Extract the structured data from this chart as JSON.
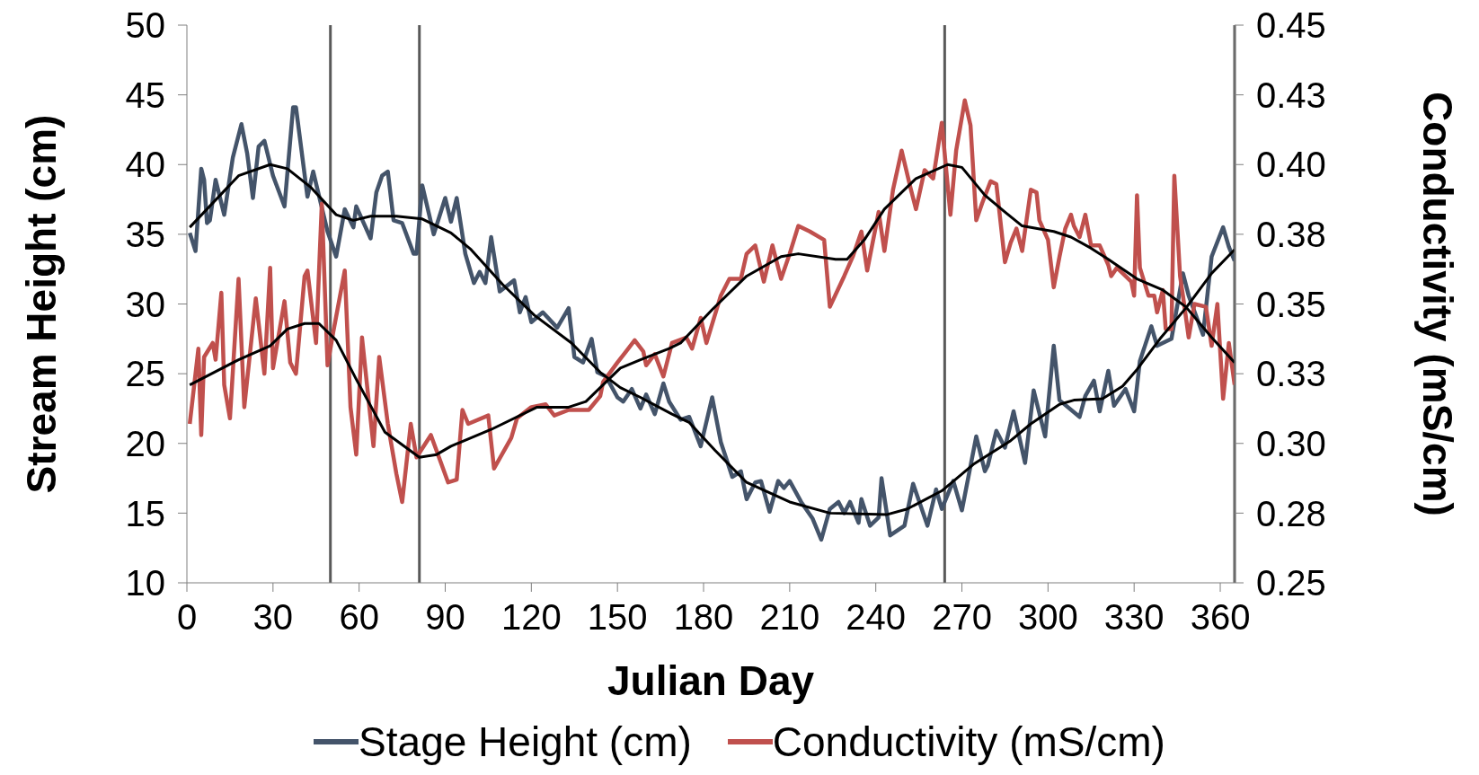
{
  "chart_data": {
    "type": "line",
    "xlabel": "Julian Day",
    "ylabel": "Stream Height (cm)",
    "y2label": "Conductivity (mS/cm)",
    "xlim": [
      0,
      365
    ],
    "xticks": [
      0,
      30,
      60,
      90,
      120,
      150,
      180,
      210,
      240,
      270,
      300,
      330,
      360
    ],
    "ylim": [
      10,
      50
    ],
    "yticks": [
      10,
      15,
      20,
      25,
      30,
      35,
      40,
      45,
      50
    ],
    "y2lim": [
      0.25,
      0.45
    ],
    "y2ticks": [
      0.25,
      {
        "value": 0.275,
        "label": "0.28"
      },
      {
        "value": 0.3,
        "label": "0.30"
      },
      {
        "value": 0.325,
        "label": "0.33"
      },
      0.35,
      {
        "value": 0.375,
        "label": "0.38"
      },
      {
        "value": 0.4,
        "label": "0.40"
      },
      {
        "value": 0.425,
        "label": "0.43"
      },
      0.45
    ],
    "grid": false,
    "legend": "bottom",
    "marker": "none",
    "line_style": "solid",
    "ref_lines": [
      {
        "axis": "x",
        "value": 50,
        "color": "#595959"
      },
      {
        "axis": "x",
        "value": 81,
        "color": "#595959"
      },
      {
        "axis": "x",
        "value": 264,
        "color": "#595959"
      },
      {
        "axis": "x",
        "value": 365,
        "color": "#595959"
      }
    ],
    "series": [
      {
        "name": "Stage Height (cm)",
        "color": "#44546a",
        "x": [
          1,
          3,
          5,
          6,
          7,
          8,
          10,
          13,
          16,
          19,
          21,
          23,
          25,
          27,
          30,
          34,
          37,
          38,
          42,
          44,
          49,
          52,
          55,
          58,
          59,
          64,
          66,
          68,
          70,
          72,
          75,
          79,
          80,
          82,
          86,
          90,
          92,
          94,
          97,
          100,
          102,
          104,
          106,
          109,
          114,
          116,
          118,
          120,
          124,
          129,
          133,
          135,
          138,
          141,
          143,
          146,
          150,
          152,
          155,
          158,
          160,
          163,
          166,
          168,
          172,
          175,
          179,
          183,
          186,
          190,
          193,
          195,
          198,
          200,
          203,
          206,
          208,
          210,
          214,
          218,
          221,
          224,
          227,
          229,
          231,
          234,
          235,
          238,
          241,
          242,
          245,
          250,
          253,
          258,
          261,
          263,
          267,
          270,
          275,
          278,
          279,
          282,
          285,
          288,
          292,
          295,
          299,
          302,
          304,
          311,
          313,
          316,
          318,
          321,
          323,
          327,
          330,
          332,
          336,
          338,
          343,
          347,
          349,
          354,
          357,
          361,
          363,
          365
        ],
        "values": [
          35.1,
          33.8,
          39.7,
          38.9,
          35.8,
          36.0,
          38.9,
          36.4,
          40.5,
          42.9,
          40.8,
          37.6,
          41.3,
          41.7,
          39.2,
          37.0,
          44.1,
          44.1,
          37.7,
          39.5,
          35.2,
          33.4,
          36.8,
          35.5,
          37.0,
          34.7,
          38.0,
          39.2,
          39.5,
          36.0,
          35.8,
          33.6,
          33.6,
          38.5,
          35.0,
          37.6,
          35.9,
          37.6,
          33.6,
          31.5,
          32.3,
          31.5,
          34.8,
          30.9,
          31.7,
          29.4,
          30.5,
          28.7,
          29.4,
          28.3,
          29.7,
          26.2,
          25.8,
          27.5,
          25.1,
          24.8,
          23.3,
          23.0,
          23.9,
          22.5,
          23.5,
          22.1,
          24.3,
          23.0,
          21.7,
          21.9,
          19.8,
          23.3,
          20.1,
          17.6,
          18.0,
          16.0,
          17.2,
          17.3,
          15.1,
          17.3,
          16.8,
          17.3,
          15.8,
          14.6,
          13.1,
          15.3,
          15.8,
          15.0,
          15.8,
          14.3,
          16.0,
          14.1,
          14.7,
          17.5,
          13.4,
          14.1,
          17.1,
          14.1,
          16.7,
          15.3,
          17.3,
          15.2,
          20.5,
          18.0,
          18.4,
          20.9,
          19.7,
          22.3,
          18.6,
          23.8,
          20.5,
          27.0,
          23.1,
          21.9,
          23.4,
          24.5,
          22.3,
          25.2,
          22.7,
          23.9,
          22.3,
          25.9,
          28.4,
          27.0,
          27.5,
          32.2,
          30.6,
          27.8,
          33.4,
          35.5,
          34.1,
          33.1
        ]
      },
      {
        "name": "Conductivity (mS/cm)",
        "color": "#c0504d",
        "axis": "y2",
        "x": [
          1,
          4,
          5,
          6,
          9,
          10,
          12,
          13,
          15,
          18,
          20,
          24,
          27,
          29,
          30,
          34,
          36,
          38,
          41,
          42,
          45,
          47,
          49,
          51,
          55,
          57,
          59,
          61,
          65,
          67,
          70,
          73,
          75,
          78,
          80,
          85,
          91,
          94,
          96,
          98,
          105,
          107,
          113,
          115,
          120,
          125,
          128,
          133,
          140,
          144,
          145,
          150,
          153,
          156,
          159,
          160,
          163,
          166,
          169,
          174,
          176,
          179,
          181,
          186,
          189,
          193,
          195,
          198,
          201,
          204,
          207,
          210,
          213,
          217,
          222,
          224,
          229,
          232,
          235,
          237,
          241,
          243,
          246,
          249,
          252,
          254,
          257,
          260,
          263,
          266,
          268,
          271,
          273,
          275,
          277,
          280,
          282,
          285,
          287,
          289,
          291,
          294,
          296,
          297,
          300,
          302,
          304,
          306,
          308,
          309,
          311,
          313,
          315,
          318,
          321,
          322,
          324,
          327,
          329,
          330,
          331,
          332,
          335,
          337,
          338,
          340,
          341,
          343,
          344,
          346,
          347,
          349,
          351,
          355,
          357,
          359,
          361,
          363,
          365
        ],
        "values": [
          0.307,
          0.334,
          0.303,
          0.331,
          0.336,
          0.33,
          0.354,
          0.321,
          0.309,
          0.359,
          0.313,
          0.352,
          0.325,
          0.363,
          0.327,
          0.351,
          0.329,
          0.325,
          0.36,
          0.362,
          0.336,
          0.386,
          0.328,
          0.34,
          0.362,
          0.313,
          0.296,
          0.338,
          0.299,
          0.331,
          0.307,
          0.289,
          0.279,
          0.307,
          0.295,
          0.303,
          0.286,
          0.287,
          0.312,
          0.307,
          0.31,
          0.291,
          0.302,
          0.309,
          0.313,
          0.314,
          0.31,
          0.312,
          0.312,
          0.317,
          0.322,
          0.329,
          0.333,
          0.337,
          0.333,
          0.328,
          0.332,
          0.324,
          0.336,
          0.338,
          0.334,
          0.345,
          0.336,
          0.353,
          0.359,
          0.359,
          0.368,
          0.371,
          0.358,
          0.371,
          0.359,
          0.368,
          0.378,
          0.376,
          0.373,
          0.349,
          0.36,
          0.367,
          0.376,
          0.362,
          0.383,
          0.369,
          0.391,
          0.405,
          0.392,
          0.384,
          0.398,
          0.395,
          0.415,
          0.382,
          0.405,
          0.423,
          0.414,
          0.38,
          0.386,
          0.394,
          0.393,
          0.365,
          0.372,
          0.377,
          0.369,
          0.391,
          0.39,
          0.38,
          0.373,
          0.356,
          0.367,
          0.377,
          0.382,
          0.378,
          0.374,
          0.382,
          0.371,
          0.371,
          0.364,
          0.36,
          0.363,
          0.36,
          0.358,
          0.353,
          0.389,
          0.363,
          0.353,
          0.353,
          0.347,
          0.355,
          0.341,
          0.341,
          0.396,
          0.36,
          0.353,
          0.338,
          0.35,
          0.349,
          0.335,
          0.35,
          0.316,
          0.336,
          0.321
        ]
      },
      {
        "color": "#000000",
        "x": [
          1,
          18,
          29,
          35,
          43,
          52,
          58,
          64,
          73,
          82,
          87,
          92,
          99,
          110,
          121,
          134,
          144,
          151,
          158,
          169,
          175,
          184,
          195,
          210,
          224,
          244,
          251,
          263,
          274,
          287,
          294,
          304,
          309,
          319,
          326,
          331,
          339,
          348,
          357,
          365
        ],
        "values": [
          35.5,
          39.2,
          40.0,
          39.7,
          38.4,
          36.4,
          36.0,
          36.3,
          36.3,
          36.1,
          35.6,
          35.1,
          33.9,
          31.4,
          29.2,
          27.2,
          25.1,
          24.0,
          23.3,
          22.1,
          21.5,
          19.5,
          17.2,
          15.8,
          15.0,
          14.9,
          15.3,
          16.6,
          18.5,
          20.2,
          21.4,
          22.8,
          23.1,
          23.2,
          24.1,
          25.3,
          27.5,
          29.7,
          32.2,
          33.9
        ]
      },
      {
        "color": "#000000",
        "axis": "y2",
        "x": [
          1,
          18,
          29,
          35,
          41,
          46,
          52,
          59,
          69,
          81,
          87,
          92,
          106,
          122,
          133,
          139,
          151,
          158,
          168,
          172,
          183,
          195,
          207,
          213,
          226,
          230,
          236,
          243,
          254,
          265,
          270,
          278,
          285,
          291,
          302,
          308,
          315,
          321,
          331,
          340,
          348,
          357,
          365
        ],
        "values": [
          0.321,
          0.33,
          0.335,
          0.341,
          0.343,
          0.343,
          0.337,
          0.323,
          0.304,
          0.295,
          0.296,
          0.299,
          0.305,
          0.313,
          0.313,
          0.315,
          0.327,
          0.33,
          0.334,
          0.336,
          0.348,
          0.36,
          0.367,
          0.368,
          0.366,
          0.366,
          0.373,
          0.384,
          0.395,
          0.4,
          0.399,
          0.389,
          0.383,
          0.378,
          0.376,
          0.374,
          0.37,
          0.366,
          0.359,
          0.355,
          0.349,
          0.338,
          0.329
        ]
      }
    ]
  }
}
